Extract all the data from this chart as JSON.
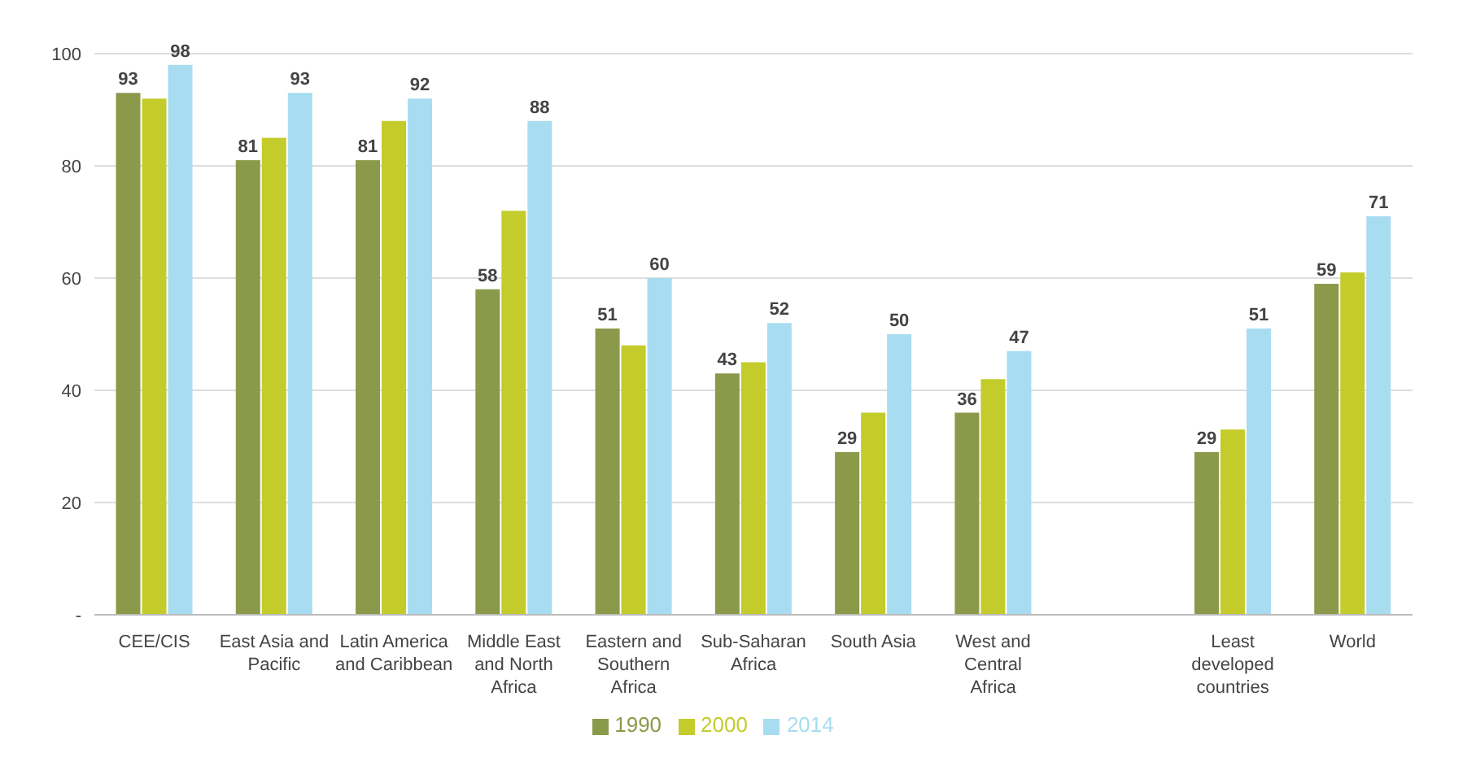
{
  "chart_data": {
    "type": "bar",
    "categories": [
      "CEE/CIS",
      "East Asia and Pacific",
      "Latin America and Caribbean",
      "Middle East and North Africa",
      "Eastern and Southern Africa",
      "Sub-Saharan Africa",
      "South Asia",
      "West and Central Africa",
      null,
      "Least developed countries",
      "World"
    ],
    "series": [
      {
        "name": "1990",
        "color": "#8b9a4a",
        "values": [
          93,
          81,
          81,
          58,
          51,
          43,
          29,
          36,
          null,
          29,
          59
        ],
        "value_labels": [
          "93",
          "81",
          "81",
          "58",
          "51",
          "43",
          "29",
          "36",
          null,
          "29",
          "59"
        ]
      },
      {
        "name": "2000",
        "color": "#c3cc2a",
        "values": [
          92,
          85,
          88,
          72,
          48,
          45,
          36,
          42,
          null,
          33,
          61
        ]
      },
      {
        "name": "2014",
        "color": "#a8dcf0",
        "values": [
          98,
          93,
          92,
          88,
          60,
          52,
          50,
          47,
          null,
          51,
          71
        ],
        "value_labels": [
          "98",
          "93",
          "92",
          "88",
          "60",
          "52",
          "50",
          "47",
          null,
          "51",
          "71"
        ]
      }
    ],
    "ylim": [
      0,
      100
    ],
    "yticks": [
      {
        "value": 0,
        "label": "-"
      },
      20,
      40,
      60,
      80,
      100
    ],
    "grid": "y",
    "legend": "bottom"
  }
}
